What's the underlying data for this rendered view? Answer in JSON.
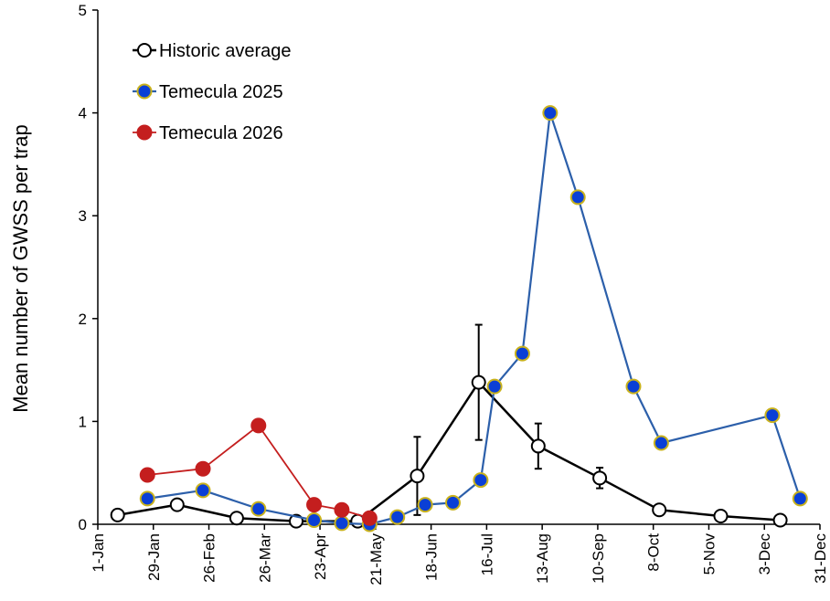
{
  "chart_data": {
    "type": "line",
    "title": "",
    "xlabel": "",
    "ylabel": "Mean number of GWSS per trap",
    "x_tick_labels": [
      "1-Jan",
      "29-Jan",
      "26-Feb",
      "26-Mar",
      "23-Apr",
      "21-May",
      "18-Jun",
      "16-Jul",
      "13-Aug",
      "10-Sep",
      "8-Oct",
      "5-Nov",
      "3-Dec",
      "31-Dec"
    ],
    "y_tick_labels": [
      "0",
      "1",
      "2",
      "3",
      "4",
      "5"
    ],
    "xlim": [
      0,
      364
    ],
    "ylim": [
      0,
      5
    ],
    "x_unit": "day of year",
    "grid": false,
    "legend_position": "top-left",
    "series": [
      {
        "name": "Historic average",
        "line_color": "#000000",
        "marker_fill": "#ffffff",
        "marker_stroke": "#000000",
        "points": [
          {
            "x": 10,
            "y": 0.09
          },
          {
            "x": 40,
            "y": 0.19
          },
          {
            "x": 70,
            "y": 0.06
          },
          {
            "x": 100,
            "y": 0.03
          },
          {
            "x": 131,
            "y": 0.03
          },
          {
            "x": 161,
            "y": 0.47,
            "err": 0.38
          },
          {
            "x": 192,
            "y": 1.38,
            "err": 0.56
          },
          {
            "x": 222,
            "y": 0.76,
            "err": 0.22
          },
          {
            "x": 253,
            "y": 0.45,
            "err": 0.1
          },
          {
            "x": 283,
            "y": 0.14
          },
          {
            "x": 314,
            "y": 0.08
          },
          {
            "x": 344,
            "y": 0.04
          }
        ]
      },
      {
        "name": "Temecula 2025",
        "line_color": "#2c5faa",
        "marker_fill": "#0a3fd6",
        "marker_stroke": "#c9b21c",
        "points": [
          {
            "x": 25,
            "y": 0.25
          },
          {
            "x": 53,
            "y": 0.33
          },
          {
            "x": 81,
            "y": 0.15
          },
          {
            "x": 109,
            "y": 0.04
          },
          {
            "x": 123,
            "y": 0.01
          },
          {
            "x": 137,
            "y": 0.0
          },
          {
            "x": 151,
            "y": 0.07
          },
          {
            "x": 165,
            "y": 0.19
          },
          {
            "x": 179,
            "y": 0.21
          },
          {
            "x": 193,
            "y": 0.43
          },
          {
            "x": 200,
            "y": 1.34
          },
          {
            "x": 214,
            "y": 1.66
          },
          {
            "x": 228,
            "y": 4.0
          },
          {
            "x": 242,
            "y": 3.18
          },
          {
            "x": 270,
            "y": 1.34
          },
          {
            "x": 284,
            "y": 0.79
          },
          {
            "x": 340,
            "y": 1.06
          },
          {
            "x": 354,
            "y": 0.25
          }
        ]
      },
      {
        "name": "Temecula 2026",
        "line_color": "#c41e1e",
        "marker_fill": "#c41e1e",
        "marker_stroke": "#c41e1e",
        "points": [
          {
            "x": 25,
            "y": 0.48
          },
          {
            "x": 53,
            "y": 0.54
          },
          {
            "x": 81,
            "y": 0.96
          },
          {
            "x": 109,
            "y": 0.19
          },
          {
            "x": 123,
            "y": 0.14
          },
          {
            "x": 137,
            "y": 0.06
          }
        ]
      }
    ]
  }
}
